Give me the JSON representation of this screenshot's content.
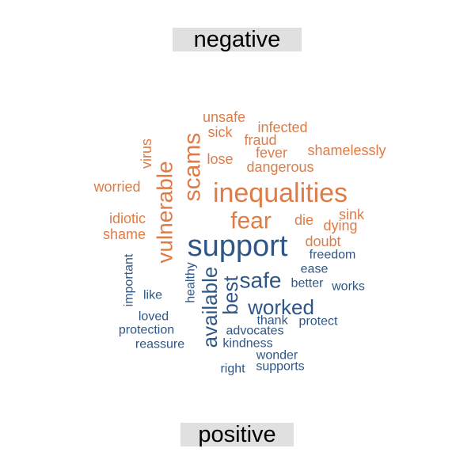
{
  "facets": {
    "top": "negative",
    "bottom": "positive"
  },
  "colors": {
    "negative": "#e07b45",
    "positive": "#2e5687",
    "strip": "#e0e0e0"
  },
  "words": [
    {
      "text": "unsafe",
      "sentiment": "negative",
      "weight": 18
    },
    {
      "text": "sick",
      "sentiment": "negative",
      "weight": 18
    },
    {
      "text": "infected",
      "sentiment": "negative",
      "weight": 18
    },
    {
      "text": "fraud",
      "sentiment": "negative",
      "weight": 18
    },
    {
      "text": "virus",
      "sentiment": "negative",
      "weight": 18
    },
    {
      "text": "fever",
      "sentiment": "negative",
      "weight": 18
    },
    {
      "text": "shamelessly",
      "sentiment": "negative",
      "weight": 18
    },
    {
      "text": "lose",
      "sentiment": "negative",
      "weight": 18
    },
    {
      "text": "dangerous",
      "sentiment": "negative",
      "weight": 18
    },
    {
      "text": "worried",
      "sentiment": "negative",
      "weight": 18
    },
    {
      "text": "inequalities",
      "sentiment": "negative",
      "weight": 34
    },
    {
      "text": "scams",
      "sentiment": "negative",
      "weight": 30
    },
    {
      "text": "vulnerable",
      "sentiment": "negative",
      "weight": 28
    },
    {
      "text": "fear",
      "sentiment": "negative",
      "weight": 30
    },
    {
      "text": "sink",
      "sentiment": "negative",
      "weight": 18
    },
    {
      "text": "die",
      "sentiment": "negative",
      "weight": 18
    },
    {
      "text": "dying",
      "sentiment": "negative",
      "weight": 18
    },
    {
      "text": "idiotic",
      "sentiment": "negative",
      "weight": 18
    },
    {
      "text": "shame",
      "sentiment": "negative",
      "weight": 18
    },
    {
      "text": "doubt",
      "sentiment": "negative",
      "weight": 18
    },
    {
      "text": "support",
      "sentiment": "positive",
      "weight": 38
    },
    {
      "text": "freedom",
      "sentiment": "positive",
      "weight": 16
    },
    {
      "text": "ease",
      "sentiment": "positive",
      "weight": 16
    },
    {
      "text": "safe",
      "sentiment": "positive",
      "weight": 28
    },
    {
      "text": "better",
      "sentiment": "positive",
      "weight": 16
    },
    {
      "text": "works",
      "sentiment": "positive",
      "weight": 16
    },
    {
      "text": "important",
      "sentiment": "positive",
      "weight": 16
    },
    {
      "text": "like",
      "sentiment": "positive",
      "weight": 16
    },
    {
      "text": "healthy",
      "sentiment": "positive",
      "weight": 16
    },
    {
      "text": "available",
      "sentiment": "positive",
      "weight": 26
    },
    {
      "text": "best",
      "sentiment": "positive",
      "weight": 26
    },
    {
      "text": "worked",
      "sentiment": "positive",
      "weight": 26
    },
    {
      "text": "loved",
      "sentiment": "positive",
      "weight": 16
    },
    {
      "text": "thank",
      "sentiment": "positive",
      "weight": 16
    },
    {
      "text": "protect",
      "sentiment": "positive",
      "weight": 16
    },
    {
      "text": "protection",
      "sentiment": "positive",
      "weight": 16
    },
    {
      "text": "advocates",
      "sentiment": "positive",
      "weight": 16
    },
    {
      "text": "reassure",
      "sentiment": "positive",
      "weight": 16
    },
    {
      "text": "kindness",
      "sentiment": "positive",
      "weight": 16
    },
    {
      "text": "wonder",
      "sentiment": "positive",
      "weight": 16
    },
    {
      "text": "right",
      "sentiment": "positive",
      "weight": 16
    },
    {
      "text": "supports",
      "sentiment": "positive",
      "weight": 16
    }
  ]
}
